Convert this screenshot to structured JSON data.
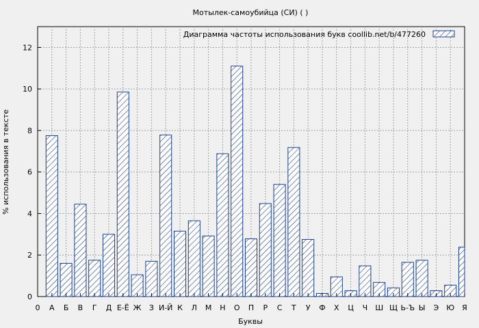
{
  "chart_data": {
    "type": "bar",
    "title": "Мотылек-самоубийца (СИ) ( )",
    "xlabel": "Буквы",
    "ylabel": "% использования в тексте",
    "legend": {
      "label": "Диаграмма частоты использования букв  coollib.net/b/477260",
      "position": "top-right"
    },
    "ylim": [
      0,
      13
    ],
    "yticks": [
      0,
      2,
      4,
      6,
      8,
      10,
      12
    ],
    "grid": true,
    "bar_color": "#1a3e8c",
    "categories": [
      "0",
      "А",
      "Б",
      "В",
      "Г",
      "Д",
      "Е-Ё",
      "Ж",
      "З",
      "И-Й",
      "К",
      "Л",
      "М",
      "Н",
      "О",
      "П",
      "Р",
      "С",
      "Т",
      "У",
      "Ф",
      "Х",
      "Ц",
      "Ч",
      "Ш",
      "Щ",
      "Ь-Ъ",
      "Ы",
      "Э",
      "Ю",
      "Я"
    ],
    "values": [
      0,
      7.75,
      1.6,
      4.45,
      1.75,
      3.0,
      9.85,
      1.05,
      1.7,
      7.78,
      3.15,
      3.65,
      2.92,
      6.88,
      11.1,
      2.78,
      4.48,
      5.4,
      7.18,
      2.75,
      0.15,
      0.95,
      0.28,
      1.48,
      0.68,
      0.42,
      1.65,
      1.75,
      0.28,
      0.55,
      2.38
    ]
  }
}
